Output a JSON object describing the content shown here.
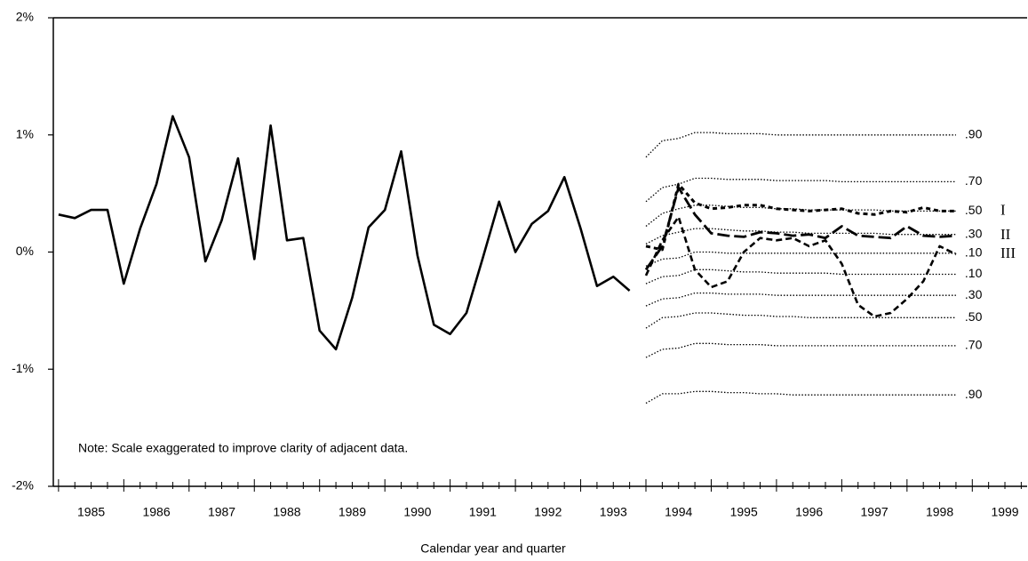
{
  "chart_data": {
    "type": "line",
    "note": "Note:  Scale exaggerated to improve clarity of adjacent data.",
    "x_label": "Calendar year and quarter",
    "xlim": [
      1984.92,
      1999.84
    ],
    "xticks": [
      {
        "value": 1985.5,
        "label": "1985"
      },
      {
        "value": 1986.5,
        "label": "1986"
      },
      {
        "value": 1987.5,
        "label": "1987"
      },
      {
        "value": 1988.5,
        "label": "1988"
      },
      {
        "value": 1989.5,
        "label": "1989"
      },
      {
        "value": 1990.5,
        "label": "1990"
      },
      {
        "value": 1991.5,
        "label": "1991"
      },
      {
        "value": 1992.5,
        "label": "1992"
      },
      {
        "value": 1993.5,
        "label": "1993"
      },
      {
        "value": 1994.5,
        "label": "1994"
      },
      {
        "value": 1995.5,
        "label": "1995"
      },
      {
        "value": 1996.5,
        "label": "1996"
      },
      {
        "value": 1997.5,
        "label": "1997"
      },
      {
        "value": 1998.5,
        "label": "1998"
      },
      {
        "value": 1999.5,
        "label": "1999"
      }
    ],
    "ylim": [
      -2,
      2
    ],
    "yticks": [
      {
        "value": 2,
        "label": "2%"
      },
      {
        "value": 1,
        "label": "1%"
      },
      {
        "value": 0,
        "label": "0%"
      },
      {
        "value": -1,
        "label": "-1%"
      },
      {
        "value": -2,
        "label": "-2%"
      }
    ],
    "series": [
      {
        "color": "#000000",
        "style": "solid",
        "x": [
          1985,
          1985.25,
          1985.5,
          1985.75,
          1986,
          1986.25,
          1986.5,
          1986.75,
          1987,
          1987.25,
          1987.5,
          1987.75,
          1988,
          1988.25,
          1988.5,
          1988.75,
          1989,
          1989.25,
          1989.5,
          1989.75,
          1990,
          1990.25,
          1990.5,
          1990.75,
          1991,
          1991.25,
          1991.5,
          1991.75,
          1992,
          1992.25,
          1992.5,
          1992.75,
          1993,
          1993.25,
          1993.5,
          1993.75
        ],
        "values": [
          0.32,
          0.29,
          0.36,
          0.36,
          -0.27,
          0.2,
          0.58,
          1.16,
          0.81,
          -0.08,
          0.27,
          0.8,
          -0.06,
          1.08,
          0.1,
          0.12,
          -0.67,
          -0.83,
          -0.39,
          0.21,
          0.36,
          0.86,
          -0.03,
          -0.62,
          -0.7,
          -0.52,
          -0.05,
          0.43,
          0,
          0.24,
          0.35,
          0.64,
          0.2,
          -0.29,
          -0.21,
          -0.33
        ]
      },
      {
        "name": ".90",
        "color": "#000000",
        "style": "dotted",
        "x": [
          1994,
          1994.25,
          1994.5,
          1994.75,
          1995,
          1995.25,
          1995.5,
          1995.75,
          1996,
          1996.25,
          1996.5,
          1996.75,
          1997,
          1997.25,
          1997.5,
          1997.75,
          1998,
          1998.25,
          1998.5,
          1998.75
        ],
        "values": [
          0.81,
          0.95,
          0.97,
          1.02,
          1.02,
          1.01,
          1.01,
          1.01,
          1.0,
          1.0,
          1.0,
          1.0,
          1.0,
          1.0,
          1.0,
          1.0,
          1.0,
          1.0,
          1.0,
          1.0
        ]
      },
      {
        "name": ".70",
        "color": "#000000",
        "style": "dotted",
        "x": [
          1994,
          1994.25,
          1994.5,
          1994.75,
          1995,
          1995.25,
          1995.5,
          1995.75,
          1996,
          1996.25,
          1996.5,
          1996.75,
          1997,
          1997.25,
          1997.5,
          1997.75,
          1998,
          1998.25,
          1998.5,
          1998.75
        ],
        "values": [
          0.43,
          0.55,
          0.58,
          0.63,
          0.63,
          0.62,
          0.62,
          0.62,
          0.61,
          0.61,
          0.61,
          0.61,
          0.6,
          0.6,
          0.6,
          0.6,
          0.6,
          0.6,
          0.6,
          0.6
        ]
      },
      {
        "name": ".50",
        "color": "#000000",
        "style": "dotted",
        "x": [
          1994,
          1994.25,
          1994.5,
          1994.75,
          1995,
          1995.25,
          1995.5,
          1995.75,
          1996,
          1996.25,
          1996.5,
          1996.75,
          1997,
          1997.25,
          1997.5,
          1997.75,
          1998,
          1998.25,
          1998.5,
          1998.75
        ],
        "values": [
          0.22,
          0.33,
          0.37,
          0.4,
          0.4,
          0.39,
          0.38,
          0.38,
          0.37,
          0.37,
          0.36,
          0.36,
          0.36,
          0.36,
          0.36,
          0.35,
          0.35,
          0.35,
          0.35,
          0.35
        ]
      },
      {
        "name": ".30",
        "color": "#000000",
        "style": "dotted",
        "x": [
          1994,
          1994.25,
          1994.5,
          1994.75,
          1995,
          1995.25,
          1995.5,
          1995.75,
          1996,
          1996.25,
          1996.5,
          1996.75,
          1997,
          1997.25,
          1997.5,
          1997.75,
          1998,
          1998.25,
          1998.5,
          1998.75
        ],
        "values": [
          0.07,
          0.14,
          0.17,
          0.2,
          0.2,
          0.19,
          0.18,
          0.18,
          0.17,
          0.17,
          0.16,
          0.16,
          0.16,
          0.16,
          0.16,
          0.15,
          0.15,
          0.15,
          0.15,
          0.15
        ]
      },
      {
        "name": ".10",
        "color": "#000000",
        "style": "dotted",
        "x": [
          1994,
          1994.25,
          1994.5,
          1994.75,
          1995,
          1995.25,
          1995.5,
          1995.75,
          1996,
          1996.25,
          1996.5,
          1996.75,
          1997,
          1997.25,
          1997.5,
          1997.75,
          1998,
          1998.25,
          1998.5,
          1998.75
        ],
        "values": [
          -0.12,
          -0.06,
          -0.05,
          0.0,
          0.0,
          -0.01,
          -0.01,
          -0.01,
          -0.01,
          -0.01,
          -0.01,
          -0.01,
          -0.01,
          -0.01,
          -0.01,
          -0.01,
          -0.01,
          -0.01,
          -0.01,
          -0.01
        ]
      },
      {
        "name": ".10",
        "color": "#000000",
        "style": "dotted",
        "x": [
          1994,
          1994.25,
          1994.5,
          1994.75,
          1995,
          1995.25,
          1995.5,
          1995.75,
          1996,
          1996.25,
          1996.5,
          1996.75,
          1997,
          1997.25,
          1997.5,
          1997.75,
          1998,
          1998.25,
          1998.5,
          1998.75
        ],
        "values": [
          -0.27,
          -0.21,
          -0.2,
          -0.15,
          -0.15,
          -0.16,
          -0.17,
          -0.17,
          -0.18,
          -0.18,
          -0.18,
          -0.18,
          -0.19,
          -0.19,
          -0.19,
          -0.19,
          -0.19,
          -0.19,
          -0.19,
          -0.19
        ]
      },
      {
        "name": ".30",
        "color": "#000000",
        "style": "dotted",
        "x": [
          1994,
          1994.25,
          1994.5,
          1994.75,
          1995,
          1995.25,
          1995.5,
          1995.75,
          1996,
          1996.25,
          1996.5,
          1996.75,
          1997,
          1997.25,
          1997.5,
          1997.75,
          1998,
          1998.25,
          1998.5,
          1998.75
        ],
        "values": [
          -0.46,
          -0.4,
          -0.39,
          -0.35,
          -0.35,
          -0.36,
          -0.36,
          -0.36,
          -0.37,
          -0.37,
          -0.37,
          -0.37,
          -0.37,
          -0.37,
          -0.37,
          -0.37,
          -0.37,
          -0.37,
          -0.37,
          -0.37
        ]
      },
      {
        "name": ".50",
        "color": "#000000",
        "style": "dotted",
        "x": [
          1994,
          1994.25,
          1994.5,
          1994.75,
          1995,
          1995.25,
          1995.5,
          1995.75,
          1996,
          1996.25,
          1996.5,
          1996.75,
          1997,
          1997.25,
          1997.5,
          1997.75,
          1998,
          1998.25,
          1998.5,
          1998.75
        ],
        "values": [
          -0.65,
          -0.56,
          -0.55,
          -0.52,
          -0.52,
          -0.53,
          -0.54,
          -0.54,
          -0.55,
          -0.55,
          -0.56,
          -0.56,
          -0.56,
          -0.56,
          -0.56,
          -0.56,
          -0.56,
          -0.56,
          -0.56,
          -0.56
        ]
      },
      {
        "name": ".70",
        "color": "#000000",
        "style": "dotted",
        "x": [
          1994,
          1994.25,
          1994.5,
          1994.75,
          1995,
          1995.25,
          1995.5,
          1995.75,
          1996,
          1996.25,
          1996.5,
          1996.75,
          1997,
          1997.25,
          1997.5,
          1997.75,
          1998,
          1998.25,
          1998.5,
          1998.75
        ],
        "values": [
          -0.9,
          -0.83,
          -0.82,
          -0.78,
          -0.78,
          -0.79,
          -0.79,
          -0.79,
          -0.8,
          -0.8,
          -0.8,
          -0.8,
          -0.8,
          -0.8,
          -0.8,
          -0.8,
          -0.8,
          -0.8,
          -0.8,
          -0.8
        ]
      },
      {
        "name": ".90",
        "color": "#000000",
        "style": "dotted",
        "x": [
          1994,
          1994.25,
          1994.5,
          1994.75,
          1995,
          1995.25,
          1995.5,
          1995.75,
          1996,
          1996.25,
          1996.5,
          1996.75,
          1997,
          1997.25,
          1997.5,
          1997.75,
          1998,
          1998.25,
          1998.5,
          1998.75
        ],
        "values": [
          -1.29,
          -1.21,
          -1.21,
          -1.19,
          -1.19,
          -1.2,
          -1.2,
          -1.21,
          -1.21,
          -1.22,
          -1.22,
          -1.22,
          -1.22,
          -1.22,
          -1.22,
          -1.22,
          -1.22,
          -1.22,
          -1.22,
          -1.22
        ]
      },
      {
        "name": "I",
        "color": "#000000",
        "style": "short-dash",
        "x": [
          1994,
          1994.25,
          1994.5,
          1994.75,
          1995,
          1995.25,
          1995.5,
          1995.75,
          1996,
          1996.25,
          1996.5,
          1996.75,
          1997,
          1997.25,
          1997.5,
          1997.75,
          1998,
          1998.25,
          1998.5,
          1998.75
        ],
        "values": [
          0.05,
          0.02,
          0.58,
          0.42,
          0.37,
          0.38,
          0.4,
          0.4,
          0.37,
          0.36,
          0.35,
          0.36,
          0.37,
          0.33,
          0.32,
          0.35,
          0.34,
          0.38,
          0.35,
          0.35
        ]
      },
      {
        "name": "II",
        "color": "#000000",
        "style": "long-dash",
        "x": [
          1994,
          1994.25,
          1994.5,
          1994.75,
          1995,
          1995.25,
          1995.5,
          1995.75,
          1996,
          1996.25,
          1996.5,
          1996.75,
          1997,
          1997.25,
          1997.5,
          1997.75,
          1998,
          1998.25,
          1998.5,
          1998.75
        ],
        "values": [
          -0.15,
          0.05,
          0.55,
          0.32,
          0.16,
          0.14,
          0.13,
          0.17,
          0.16,
          0.14,
          0.15,
          0.12,
          0.22,
          0.14,
          0.13,
          0.12,
          0.22,
          0.14,
          0.13,
          0.14
        ]
      },
      {
        "name": "III",
        "color": "#000000",
        "style": "dash",
        "x": [
          1994,
          1994.25,
          1994.5,
          1994.75,
          1995,
          1995.25,
          1995.5,
          1995.75,
          1996,
          1996.25,
          1996.5,
          1996.75,
          1997,
          1997.25,
          1997.5,
          1997.75,
          1998,
          1998.25,
          1998.5,
          1998.75
        ],
        "values": [
          -0.2,
          0.1,
          0.3,
          -0.15,
          -0.3,
          -0.25,
          0.0,
          0.12,
          0.1,
          0.12,
          0.05,
          0.1,
          -0.1,
          -0.45,
          -0.55,
          -0.52,
          -0.4,
          -0.25,
          0.05,
          -0.02
        ]
      }
    ]
  }
}
